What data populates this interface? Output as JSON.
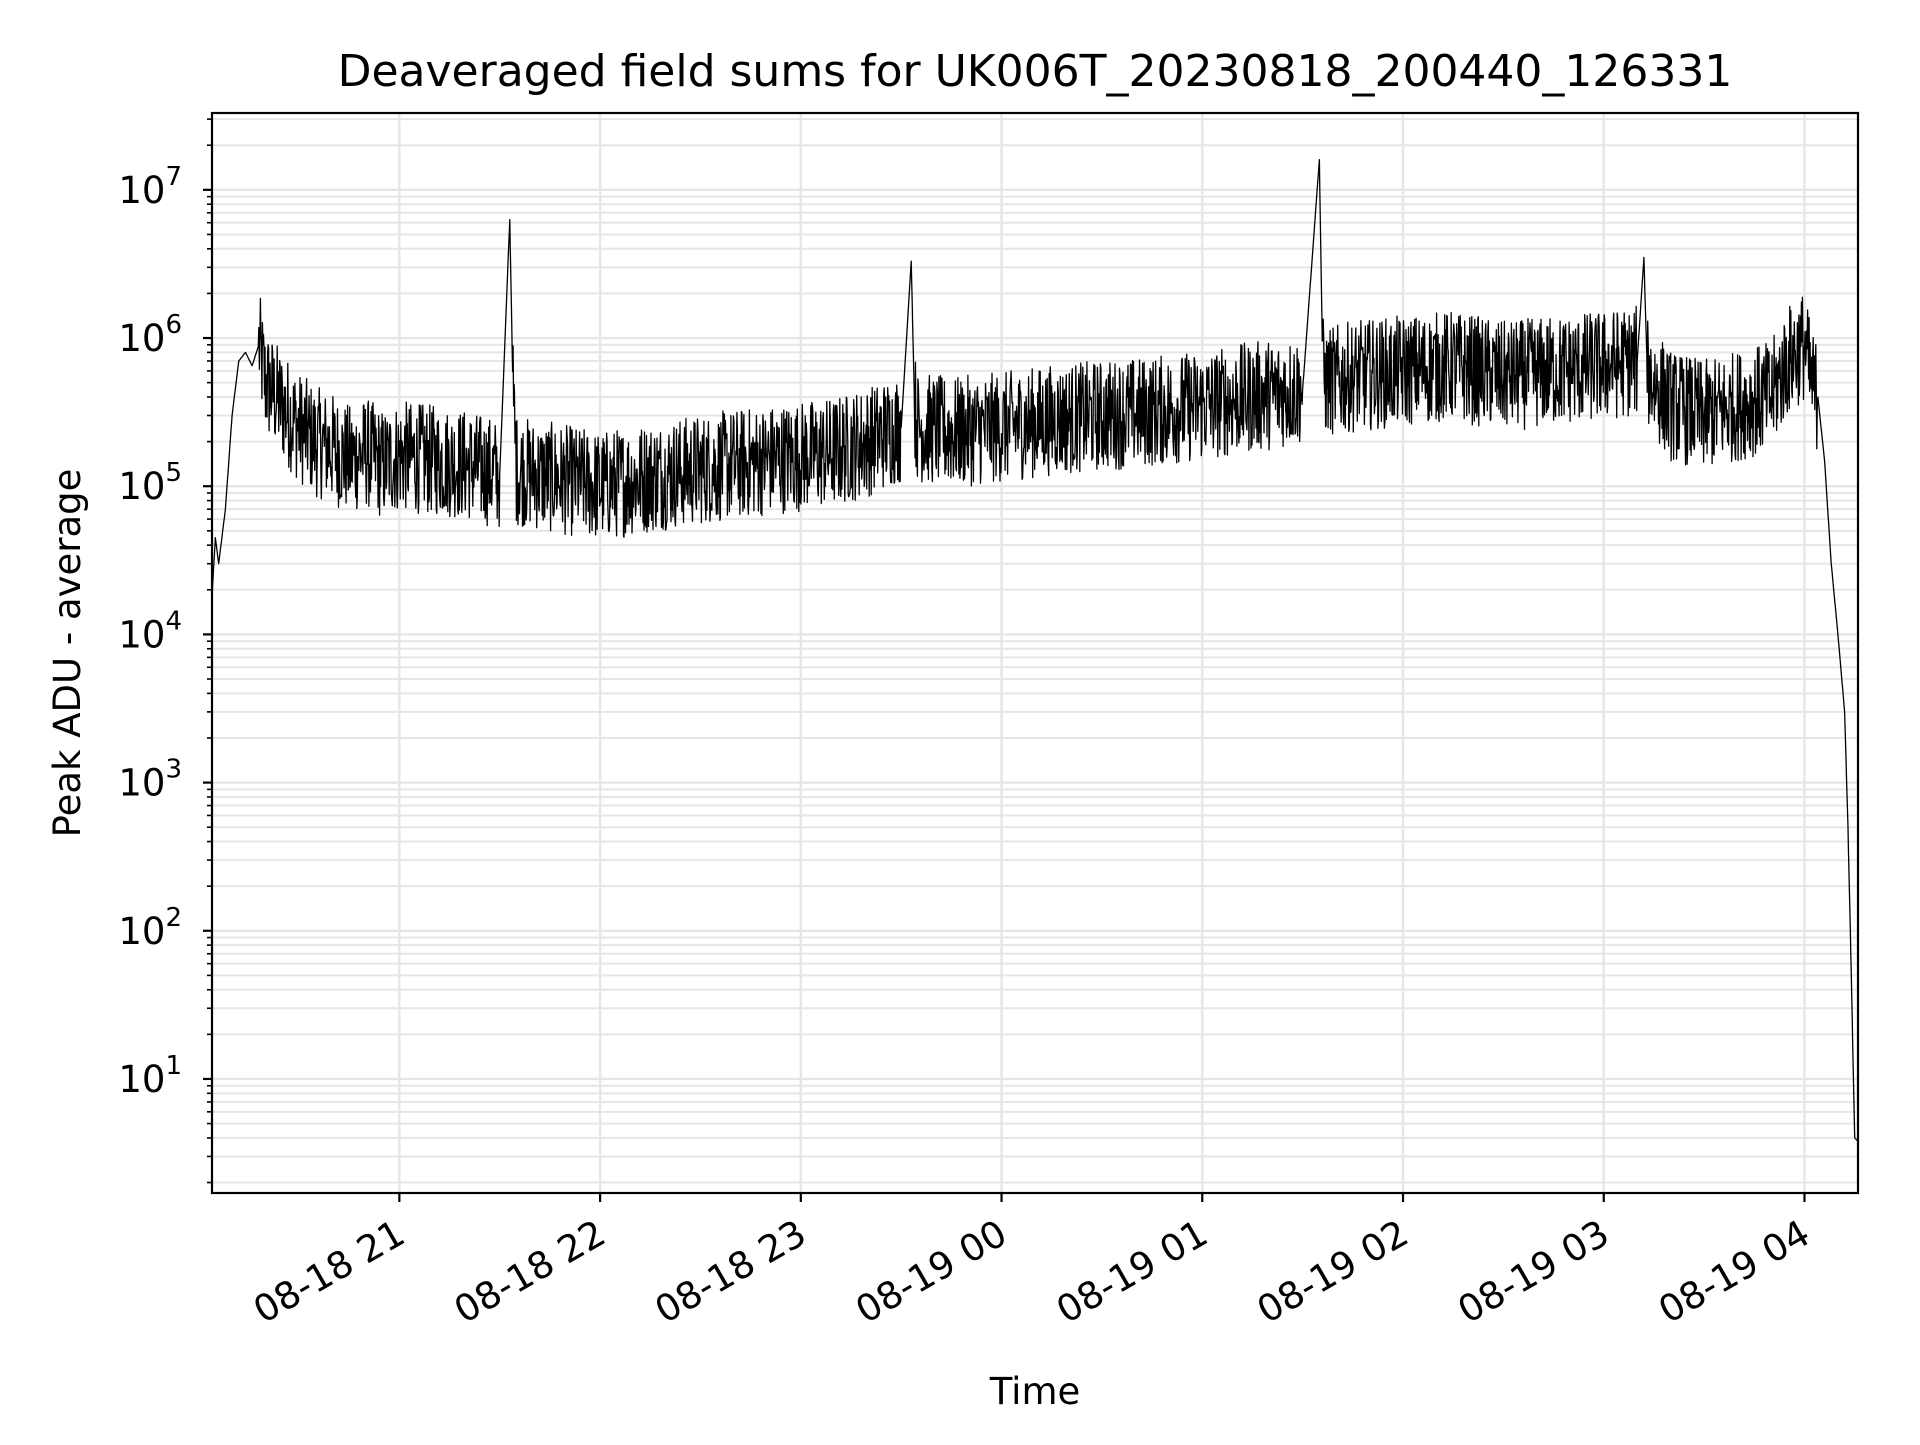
{
  "chart_data": {
    "type": "line",
    "title": "Deaveraged field sums for UK006T_20230818_200440_126331",
    "xlabel": "Time",
    "ylabel": "Peak ADU - average",
    "yscale": "log",
    "grid": true,
    "line_color": "#000000",
    "grid_color": "#e6e6e6",
    "x_tick_labels": [
      "08-18 21",
      "08-18 22",
      "08-18 23",
      "08-19 00",
      "08-19 01",
      "08-19 02",
      "08-19 03",
      "08-19 04"
    ],
    "y_tick_labels": [
      "10",
      "10",
      "10",
      "10",
      "10",
      "10",
      "10"
    ],
    "y_tick_exponents": [
      "1",
      "2",
      "3",
      "4",
      "5",
      "6",
      "7"
    ],
    "x_ticks": [
      "2023-08-18 21:00",
      "2023-08-18 22:00",
      "2023-08-18 23:00",
      "2023-08-19 00:00",
      "2023-08-19 01:00",
      "2023-08-19 02:00",
      "2023-08-19 03:00",
      "2023-08-19 04:00"
    ],
    "xlim": [
      "2023-08-18 20:04",
      "2023-08-19 04:16"
    ],
    "ylim": [
      1.7,
      33000000
    ],
    "series": [
      {
        "x": [
          "2023-08-18 20:04",
          "2023-08-18 20:05",
          "2023-08-18 20:06",
          "2023-08-18 20:08",
          "2023-08-18 20:10",
          "2023-08-18 20:12",
          "2023-08-18 20:14",
          "2023-08-18 20:16",
          "2023-08-18 20:18",
          "2023-08-18 20:20",
          "2023-08-18 20:25",
          "2023-08-18 20:30",
          "2023-08-18 20:35",
          "2023-08-18 20:40",
          "2023-08-18 20:45",
          "2023-08-18 20:50",
          "2023-08-18 20:55",
          "2023-08-18 21:00",
          "2023-08-18 21:10",
          "2023-08-18 21:20",
          "2023-08-18 21:30",
          "2023-08-18 21:33",
          "2023-08-18 21:34",
          "2023-08-18 21:35",
          "2023-08-18 21:40",
          "2023-08-18 21:50",
          "2023-08-18 22:00",
          "2023-08-18 22:10",
          "2023-08-18 22:20",
          "2023-08-18 22:30",
          "2023-08-18 22:40",
          "2023-08-18 22:50",
          "2023-08-18 23:00",
          "2023-08-18 23:10",
          "2023-08-18 23:20",
          "2023-08-18 23:30",
          "2023-08-18 23:33",
          "2023-08-18 23:34",
          "2023-08-18 23:35",
          "2023-08-18 23:45",
          "2023-08-19 00:00",
          "2023-08-19 00:15",
          "2023-08-19 00:30",
          "2023-08-19 00:45",
          "2023-08-19 01:00",
          "2023-08-19 01:15",
          "2023-08-19 01:30",
          "2023-08-19 01:35",
          "2023-08-19 01:36",
          "2023-08-19 01:37",
          "2023-08-19 01:45",
          "2023-08-19 02:00",
          "2023-08-19 02:15",
          "2023-08-19 02:30",
          "2023-08-19 02:45",
          "2023-08-19 03:00",
          "2023-08-19 03:10",
          "2023-08-19 03:12",
          "2023-08-19 03:13",
          "2023-08-19 03:15",
          "2023-08-19 03:20",
          "2023-08-19 03:30",
          "2023-08-19 03:40",
          "2023-08-19 03:50",
          "2023-08-19 03:55",
          "2023-08-19 04:00",
          "2023-08-19 04:02",
          "2023-08-19 04:04",
          "2023-08-19 04:06",
          "2023-08-19 04:08",
          "2023-08-19 04:10",
          "2023-08-19 04:12",
          "2023-08-19 04:13",
          "2023-08-19 04:14",
          "2023-08-19 04:15",
          "2023-08-19 04:16"
        ],
        "y": [
          18000,
          45000,
          30000,
          70000,
          300000,
          700000,
          800000,
          650000,
          900000,
          500000,
          350000,
          250000,
          200000,
          180000,
          150000,
          170000,
          140000,
          160000,
          150000,
          140000,
          120000,
          6300000,
          400000,
          130000,
          120000,
          110000,
          100000,
          110000,
          120000,
          130000,
          140000,
          150000,
          160000,
          170000,
          200000,
          250000,
          3300000,
          350000,
          250000,
          230000,
          250000,
          280000,
          300000,
          320000,
          350000,
          400000,
          450000,
          16000000,
          600000,
          500000,
          550000,
          600000,
          650000,
          550000,
          600000,
          650000,
          700000,
          3500000,
          600000,
          500000,
          350000,
          300000,
          350000,
          400000,
          700000,
          900000,
          500000,
          400000,
          150000,
          30000,
          10000,
          3000,
          500,
          50,
          4,
          3.8
        ]
      }
    ]
  }
}
